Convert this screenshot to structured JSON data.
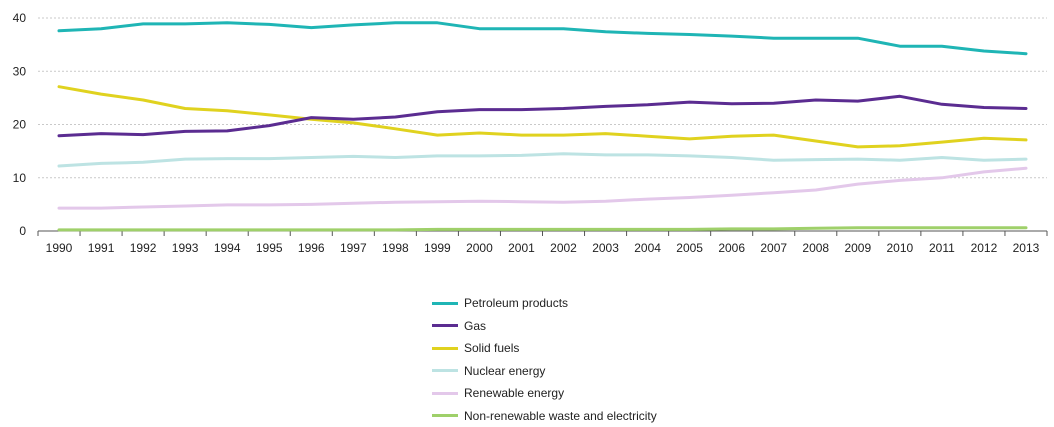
{
  "chart_data": {
    "type": "line",
    "x": [
      "1990",
      "1991",
      "1992",
      "1993",
      "1994",
      "1995",
      "1996",
      "1997",
      "1998",
      "1999",
      "2000",
      "2001",
      "2002",
      "2003",
      "2004",
      "2005",
      "2006",
      "2007",
      "2008",
      "2009",
      "2010",
      "2011",
      "2012",
      "2013"
    ],
    "ylim": [
      0,
      40
    ],
    "yticks": [
      0,
      10,
      20,
      30,
      40
    ],
    "grid": true,
    "legend_position": "bottom",
    "series": [
      {
        "name": "Petroleum products",
        "color": "#1fb5b5",
        "values": [
          37.6,
          38.0,
          38.9,
          38.9,
          39.1,
          38.8,
          38.2,
          38.7,
          39.1,
          39.1,
          38.0,
          38.0,
          38.0,
          37.4,
          37.1,
          36.9,
          36.6,
          36.2,
          36.2,
          36.2,
          34.7,
          34.7,
          33.8,
          33.3
        ]
      },
      {
        "name": "Gas",
        "color": "#5b2c91",
        "values": [
          17.9,
          18.3,
          18.1,
          18.7,
          18.8,
          19.8,
          21.3,
          21.0,
          21.4,
          22.4,
          22.8,
          22.8,
          23.0,
          23.4,
          23.7,
          24.2,
          23.9,
          24.0,
          24.6,
          24.4,
          25.3,
          23.8,
          23.2,
          23.0
        ]
      },
      {
        "name": "Solid fuels",
        "color": "#e0d21f",
        "values": [
          27.1,
          25.7,
          24.6,
          23.0,
          22.6,
          21.8,
          21.0,
          20.3,
          19.2,
          18.0,
          18.4,
          18.0,
          18.0,
          18.3,
          17.8,
          17.3,
          17.8,
          18.0,
          16.9,
          15.8,
          16.0,
          16.7,
          17.4,
          17.1
        ]
      },
      {
        "name": "Nuclear energy",
        "color": "#bde3e3",
        "values": [
          12.2,
          12.7,
          12.9,
          13.5,
          13.6,
          13.6,
          13.8,
          14.0,
          13.8,
          14.1,
          14.1,
          14.2,
          14.5,
          14.3,
          14.3,
          14.1,
          13.8,
          13.3,
          13.4,
          13.5,
          13.3,
          13.8,
          13.3,
          13.5
        ]
      },
      {
        "name": "Renewable energy",
        "color": "#e3c8ea",
        "values": [
          4.3,
          4.3,
          4.5,
          4.7,
          4.9,
          4.9,
          5.0,
          5.2,
          5.4,
          5.5,
          5.6,
          5.5,
          5.4,
          5.6,
          6.0,
          6.3,
          6.7,
          7.2,
          7.7,
          8.8,
          9.5,
          10.0,
          11.1,
          11.8
        ]
      },
      {
        "name": "Non-renewable waste and electricity",
        "color": "#9fd06a",
        "values": [
          0.2,
          0.2,
          0.2,
          0.2,
          0.2,
          0.2,
          0.2,
          0.2,
          0.2,
          0.3,
          0.3,
          0.3,
          0.3,
          0.3,
          0.3,
          0.3,
          0.4,
          0.4,
          0.5,
          0.6,
          0.6,
          0.6,
          0.6,
          0.6
        ]
      }
    ]
  }
}
